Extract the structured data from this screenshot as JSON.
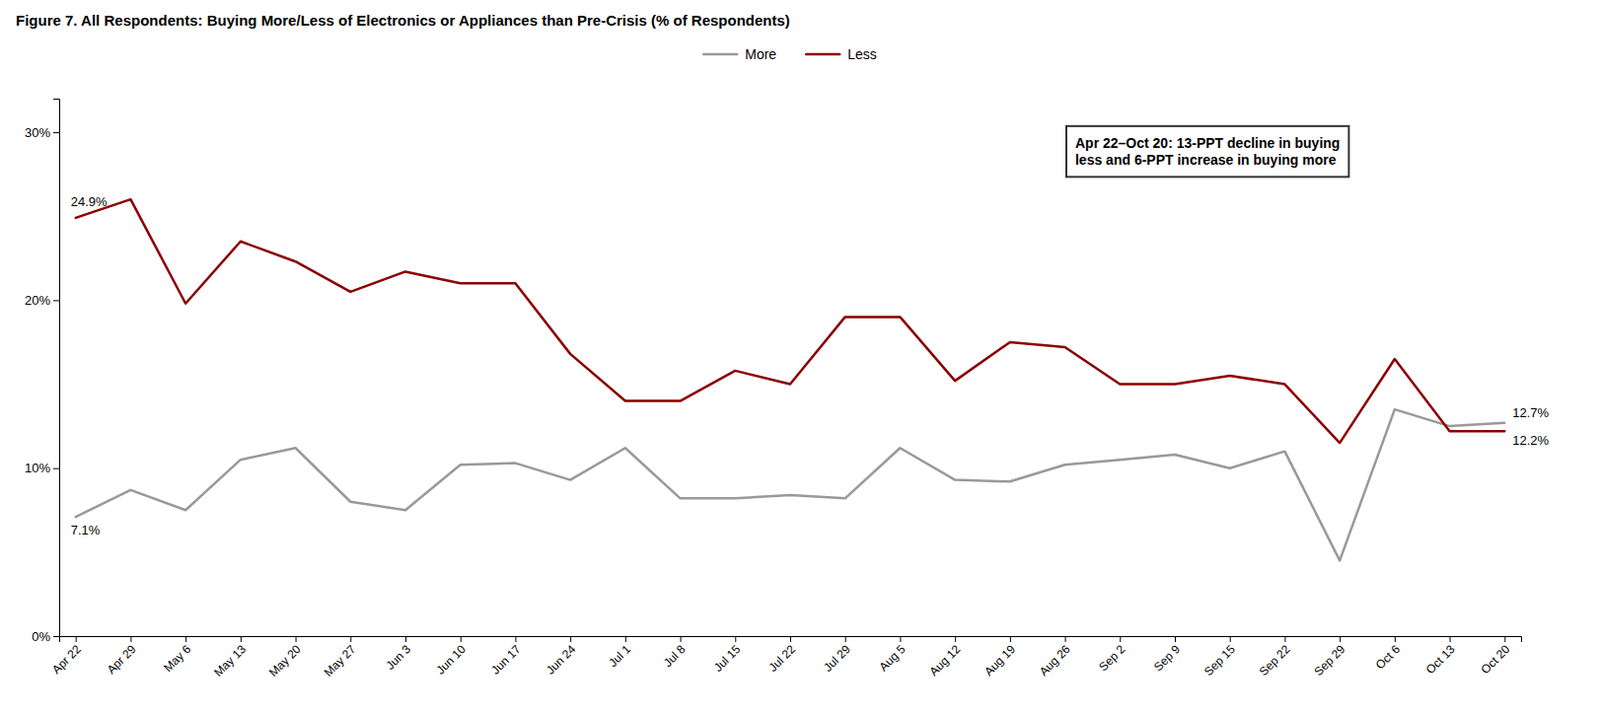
{
  "chart_data": {
    "type": "line",
    "title": "Figure 7. All Respondents: Buying More/Less of Electronics or Appliances than Pre-Crisis (% of Respondents)",
    "categories": [
      "Apr 22",
      "Apr 29",
      "May 6",
      "May 13",
      "May 20",
      "May 27",
      "Jun 3",
      "Jun 10",
      "Jun 17",
      "Jun 24",
      "Jul 1",
      "Jul 8",
      "Jul 15",
      "Jul 22",
      "Jul 29",
      "Aug 5",
      "Aug 12",
      "Aug 19",
      "Aug 26",
      "Sep 2",
      "Sep 9",
      "Sep 15",
      "Sep 22",
      "Sep 29",
      "Oct 6",
      "Oct 13",
      "Oct 20"
    ],
    "series": [
      {
        "name": "More",
        "color": "#999999",
        "values": [
          7.1,
          8.7,
          7.5,
          10.5,
          11.2,
          8.0,
          7.5,
          10.2,
          10.3,
          9.3,
          11.2,
          8.2,
          8.2,
          8.4,
          8.2,
          11.2,
          9.3,
          9.2,
          10.2,
          10.5,
          10.8,
          10.0,
          11.0,
          4.5,
          13.5,
          12.5,
          12.7
        ],
        "value_labels": [
          "7.1%",
          null,
          null,
          null,
          null,
          null,
          null,
          null,
          null,
          null,
          null,
          null,
          null,
          null,
          null,
          null,
          null,
          null,
          null,
          null,
          null,
          null,
          null,
          null,
          null,
          null,
          "12.7%"
        ]
      },
      {
        "name": "Less",
        "color": "#8B0000",
        "values": [
          24.9,
          26.0,
          19.8,
          23.5,
          22.3,
          20.5,
          21.7,
          21.0,
          21.0,
          16.8,
          14.0,
          14.0,
          15.8,
          15.0,
          19.0,
          19.0,
          15.2,
          17.5,
          17.2,
          15.0,
          15.0,
          15.5,
          15.0,
          11.5,
          16.5,
          12.2,
          12.2
        ],
        "value_labels": [
          "24.9%",
          null,
          null,
          null,
          null,
          null,
          null,
          null,
          null,
          null,
          null,
          null,
          null,
          null,
          null,
          null,
          null,
          null,
          null,
          null,
          null,
          null,
          null,
          null,
          null,
          null,
          "12.2%"
        ]
      }
    ],
    "annotations": [
      "Apr 22–Oct 20: 13-PPT decline in buying\nless and 6-PPT increase in buying more"
    ],
    "ylim": [
      0,
      32
    ],
    "yticks": [
      {
        "value": 0,
        "label": "0%"
      },
      {
        "value": 10,
        "label": "10%"
      },
      {
        "value": 20,
        "label": "20%"
      },
      {
        "value": 30,
        "label": "30%"
      }
    ],
    "grid": false,
    "legend": "top"
  }
}
